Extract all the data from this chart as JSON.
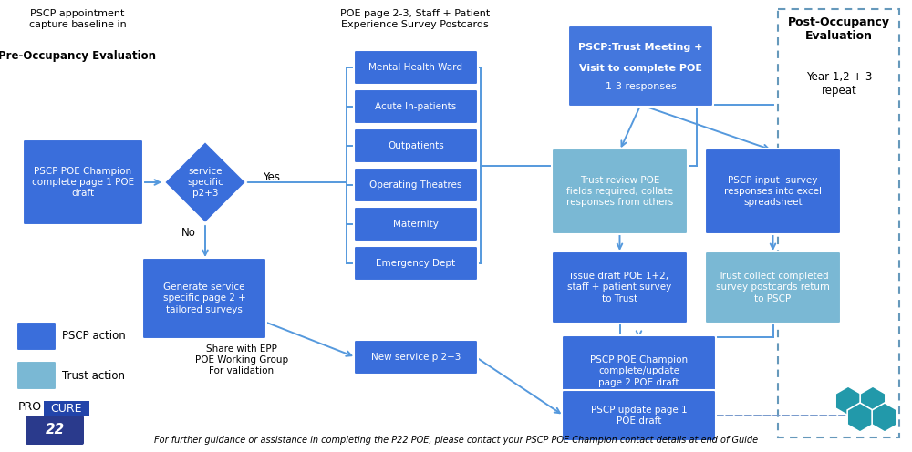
{
  "background_color": "#ffffff",
  "pscp_blue": "#3a6edb",
  "trust_blue": "#7ab8d4",
  "arrow_blue": "#5599dd",
  "tm_blue": "#4a7de8",
  "footer": "For further guidance or assistance in completing the P22 POE, please contact your PSCP POE Champion contact details at end of Guide",
  "legend_pscp": "PSCP action",
  "legend_trust": "Trust action"
}
